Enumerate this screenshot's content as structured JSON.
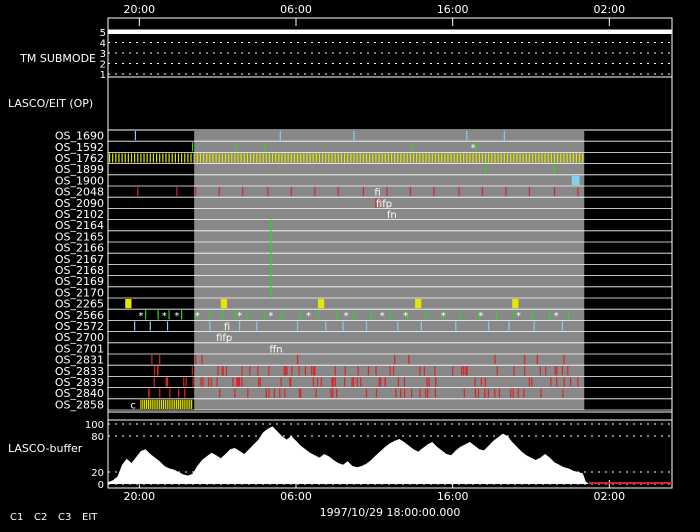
{
  "chart_data": {
    "type": "timeline",
    "x_axis": {
      "top_ticks": [
        "20:00",
        "06:00",
        "16:00",
        "02:00"
      ],
      "bottom_ticks": [
        "20:00",
        "06:00",
        "16:00",
        "02:00"
      ],
      "xlabel": "1997/10/29 18:00:00.000",
      "tick_hours": [
        20,
        30,
        40,
        50
      ],
      "range_hours": [
        18,
        54
      ]
    },
    "tm_submode": {
      "label": "TM SUBMODE",
      "levels": [
        "5",
        "4",
        "3",
        "2",
        "1"
      ],
      "active_level": 5
    },
    "section_label": "LASCO/EIT (OP)",
    "shaded_region_hours": [
      23.5,
      48.4
    ],
    "rows": [
      {
        "name": "OS_1690",
        "color": "#7fd3ee",
        "hours": [
          19.75,
          29.0,
          33.7,
          40.9,
          43.3
        ]
      },
      {
        "name": "OS_1592",
        "color": "#22dd22",
        "hours": [
          23.4,
          26.2,
          28.0,
          37.4,
          41.5
        ]
      },
      {
        "name": "OS_1762",
        "color": "#e6e600",
        "dense": true,
        "range": [
          18.1,
          48.4
        ],
        "step": 0.2
      },
      {
        "name": "OS_1899",
        "color": "#22dd22",
        "hours": [
          42.1,
          46.5
        ]
      },
      {
        "name": "OS_1900",
        "color": "#7fd3ee",
        "block": [
          47.6,
          48.1
        ]
      },
      {
        "name": "OS_2048",
        "color": "#dd2222",
        "hours": [
          19.9,
          22.4,
          23.6,
          25.1,
          26.6,
          28.2,
          29.7,
          31.2,
          32.7,
          34.3,
          35.8,
          37.3,
          38.8,
          40.4,
          41.9,
          43.4,
          44.9,
          46.5,
          48.0
        ]
      },
      {
        "name": "OS_2090",
        "color": "#dd2222",
        "hours": [
          35.1,
          35.4
        ]
      },
      {
        "name": "OS_2102",
        "color": "#dd2222",
        "hours": []
      },
      {
        "name": "OS_2164",
        "color": "#22dd22",
        "hours": []
      },
      {
        "name": "OS_2165",
        "color": "#22dd22",
        "hours": []
      },
      {
        "name": "OS_2166",
        "color": "#22dd22",
        "hours": []
      },
      {
        "name": "OS_2167",
        "color": "#22dd22",
        "hours": []
      },
      {
        "name": "OS_2168",
        "color": "#22dd22",
        "hours": []
      },
      {
        "name": "OS_2169",
        "color": "#22dd22",
        "hours": []
      },
      {
        "name": "OS_2170",
        "color": "#22dd22",
        "hours": []
      },
      {
        "name": "OS_2265",
        "color": "#e6e600",
        "blocks": [
          [
            19.1,
            19.5
          ],
          [
            25.2,
            25.6
          ],
          [
            31.4,
            31.8
          ],
          [
            37.6,
            38.0
          ],
          [
            43.8,
            44.2
          ]
        ]
      },
      {
        "name": "OS_2566",
        "color": "#22dd22",
        "hours": [
          20.4,
          21.2,
          21.9,
          22.7,
          23.6,
          24.5,
          25.3,
          26.1,
          26.9,
          28.0,
          29.1,
          30.3,
          31.4,
          32.6,
          33.7,
          34.8,
          36.0,
          37.1,
          38.3,
          39.4,
          40.5,
          41.7,
          42.8,
          43.9,
          45.1,
          46.2,
          47.4
        ]
      },
      {
        "name": "OS_2572",
        "color": "#7fd3ee",
        "hours": [
          19.7,
          20.7,
          21.8,
          24.5,
          26.4,
          27.5,
          30.1,
          31.9,
          33.0,
          34.5,
          36.5,
          38.0,
          40.2,
          42.3,
          43.6,
          45.2,
          47.0
        ]
      },
      {
        "name": "OS_2700",
        "color": "#dd2222",
        "hours": []
      },
      {
        "name": "OS_2701",
        "color": "#dd2222",
        "hours": []
      },
      {
        "name": "OS_2831",
        "color": "#dd2222",
        "hours": [
          20.8,
          21.3,
          23.6,
          24.0,
          30.1,
          36.3,
          37.2,
          42.7,
          44.6,
          45.4,
          47.1
        ]
      },
      {
        "name": "OS_2833",
        "color": "#dd2222",
        "random": {
          "seed": 3,
          "range": [
            20.5,
            48.4
          ],
          "count": 45
        }
      },
      {
        "name": "OS_2839",
        "color": "#dd2222",
        "random": {
          "seed": 7,
          "range": [
            19.5,
            48.4
          ],
          "count": 55
        }
      },
      {
        "name": "OS_2840",
        "color": "#dd2222",
        "random": {
          "seed": 11,
          "range": [
            19.5,
            48.4
          ],
          "count": 45
        }
      },
      {
        "name": "OS_2858",
        "color": "#e6e600",
        "dense": true,
        "range": [
          20.1,
          23.4
        ],
        "step": 0.12
      }
    ],
    "star_marks": [
      {
        "row": "OS_1592",
        "hour": 41.3,
        "text": "*",
        "color": "#ffffff"
      },
      {
        "row": "OS_2566",
        "hours": [
          20.1,
          21.6,
          22.4,
          23.7,
          26.4,
          28.4,
          30.8,
          33.2,
          35.5,
          37.0,
          39.4,
          41.8,
          44.2,
          46.6
        ],
        "text": "*",
        "color": "#ffffff"
      },
      {
        "row": "OS_2858",
        "hour": 19.6,
        "text": "c",
        "color": "#ffffff"
      }
    ],
    "annotations": [
      {
        "row": "OS_2048",
        "hour": 35.0,
        "text": "fi",
        "color": "#dd2222"
      },
      {
        "row": "OS_2090",
        "hour": 35.1,
        "text": "fifp",
        "color": "#e6e600"
      },
      {
        "row": "OS_2102",
        "hour": 35.8,
        "text": "fn",
        "color": "#e6e600"
      },
      {
        "row": "OS_2700",
        "hour": 24.9,
        "text": "fifp",
        "color": "#e6e600"
      },
      {
        "row": "OS_2701",
        "hour": 28.3,
        "text": "ffn",
        "color": "#e6e600"
      },
      {
        "row": "OS_2572",
        "hour": 25.4,
        "text": "fi",
        "color": "#dd2222"
      }
    ],
    "vertical_lines": [
      {
        "hour": 28.4,
        "from_row": "OS_2164",
        "to_row": "OS_2170",
        "color": "#22dd22"
      }
    ],
    "buffer": {
      "label": "LASCO-buffer",
      "yticks": [
        0,
        20,
        80,
        100
      ],
      "ylim": [
        0,
        100
      ],
      "fill_color": "#ffffff",
      "series": [
        [
          18.0,
          3
        ],
        [
          18.3,
          6
        ],
        [
          18.6,
          12
        ],
        [
          18.9,
          32
        ],
        [
          19.2,
          42
        ],
        [
          19.5,
          35
        ],
        [
          19.8,
          45
        ],
        [
          20.1,
          55
        ],
        [
          20.4,
          58
        ],
        [
          20.7,
          50
        ],
        [
          21.0,
          44
        ],
        [
          21.3,
          38
        ],
        [
          21.6,
          30
        ],
        [
          21.9,
          26
        ],
        [
          22.2,
          24
        ],
        [
          22.5,
          20
        ],
        [
          22.8,
          16
        ],
        [
          23.1,
          14
        ],
        [
          23.4,
          17
        ],
        [
          23.7,
          30
        ],
        [
          24.0,
          40
        ],
        [
          24.3,
          46
        ],
        [
          24.6,
          52
        ],
        [
          24.9,
          48
        ],
        [
          25.2,
          43
        ],
        [
          25.5,
          50
        ],
        [
          25.8,
          58
        ],
        [
          26.1,
          60
        ],
        [
          26.4,
          55
        ],
        [
          26.7,
          50
        ],
        [
          27.0,
          58
        ],
        [
          27.3,
          66
        ],
        [
          27.6,
          74
        ],
        [
          27.9,
          86
        ],
        [
          28.2,
          92
        ],
        [
          28.5,
          96
        ],
        [
          28.8,
          88
        ],
        [
          29.1,
          80
        ],
        [
          29.4,
          74
        ],
        [
          29.7,
          80
        ],
        [
          30.0,
          72
        ],
        [
          30.3,
          64
        ],
        [
          30.6,
          58
        ],
        [
          30.9,
          52
        ],
        [
          31.2,
          48
        ],
        [
          31.5,
          44
        ],
        [
          31.8,
          50
        ],
        [
          32.1,
          46
        ],
        [
          32.4,
          40
        ],
        [
          32.7,
          35
        ],
        [
          33.0,
          32
        ],
        [
          33.3,
          38
        ],
        [
          33.6,
          30
        ],
        [
          33.9,
          28
        ],
        [
          34.2,
          30
        ],
        [
          34.5,
          34
        ],
        [
          34.8,
          40
        ],
        [
          35.1,
          48
        ],
        [
          35.4,
          55
        ],
        [
          35.7,
          62
        ],
        [
          36.0,
          68
        ],
        [
          36.3,
          72
        ],
        [
          36.6,
          75
        ],
        [
          36.9,
          70
        ],
        [
          37.2,
          64
        ],
        [
          37.5,
          58
        ],
        [
          37.8,
          54
        ],
        [
          38.1,
          60
        ],
        [
          38.4,
          66
        ],
        [
          38.7,
          70
        ],
        [
          39.0,
          62
        ],
        [
          39.3,
          56
        ],
        [
          39.6,
          50
        ],
        [
          39.9,
          48
        ],
        [
          40.2,
          56
        ],
        [
          40.5,
          62
        ],
        [
          40.8,
          66
        ],
        [
          41.1,
          70
        ],
        [
          41.4,
          64
        ],
        [
          41.7,
          58
        ],
        [
          42.0,
          56
        ],
        [
          42.3,
          64
        ],
        [
          42.6,
          72
        ],
        [
          42.9,
          78
        ],
        [
          43.2,
          84
        ],
        [
          43.5,
          80
        ],
        [
          43.8,
          70
        ],
        [
          44.1,
          62
        ],
        [
          44.4,
          54
        ],
        [
          44.7,
          48
        ],
        [
          45.0,
          44
        ],
        [
          45.3,
          40
        ],
        [
          45.6,
          44
        ],
        [
          45.9,
          50
        ],
        [
          46.2,
          44
        ],
        [
          46.5,
          36
        ],
        [
          46.8,
          32
        ],
        [
          47.1,
          28
        ],
        [
          47.4,
          26
        ],
        [
          47.7,
          22
        ],
        [
          48.0,
          20
        ],
        [
          48.3,
          18
        ],
        [
          48.5,
          4
        ],
        [
          48.7,
          0
        ]
      ],
      "zero_line_color": "#dd2222",
      "zero_line_range": [
        48.7,
        54.0
      ]
    },
    "legend": [
      {
        "text": "C1",
        "color": "#dd2222"
      },
      {
        "text": "C2",
        "color": "#22dd22"
      },
      {
        "text": "C3",
        "color": "#7fd3ee"
      },
      {
        "text": "EIT",
        "color": "#e6e600"
      }
    ]
  }
}
